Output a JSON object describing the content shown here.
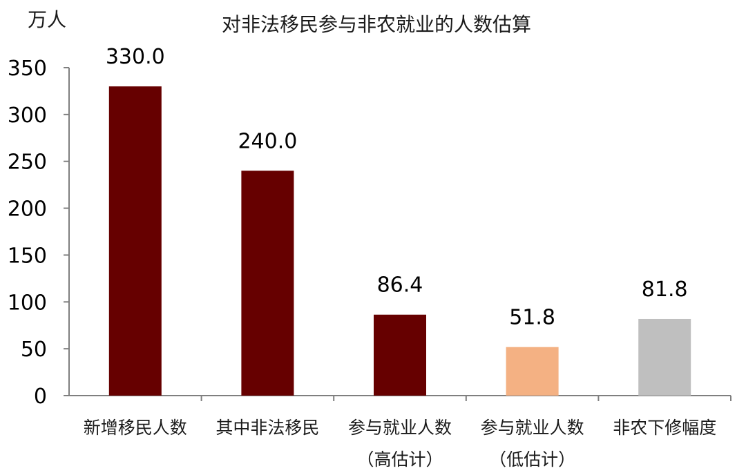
{
  "chart_data": {
    "type": "bar",
    "title": "对非法移民参与非农就业的人数估算",
    "unit_label": "万人",
    "xlabel": "",
    "ylabel": "",
    "ylim": [
      0,
      350
    ],
    "yticks": [
      0,
      50,
      100,
      150,
      200,
      250,
      300,
      350
    ],
    "grid": false,
    "legend": "none",
    "categories": [
      [
        "新增移民人数"
      ],
      [
        "其中非法移民"
      ],
      [
        "参与就业人数",
        "（高估计）"
      ],
      [
        "参与就业人数",
        "（低估计）"
      ],
      [
        "非农下修幅度"
      ]
    ],
    "values": [
      330.0,
      240.0,
      86.4,
      51.8,
      81.8
    ],
    "data_labels": [
      "330.0",
      "240.0",
      "86.4",
      "51.8",
      "81.8"
    ],
    "colors": [
      "#660000",
      "#660000",
      "#660000",
      "#F4B183",
      "#BFBFBF"
    ],
    "axis_color": "#7F7F7F"
  }
}
